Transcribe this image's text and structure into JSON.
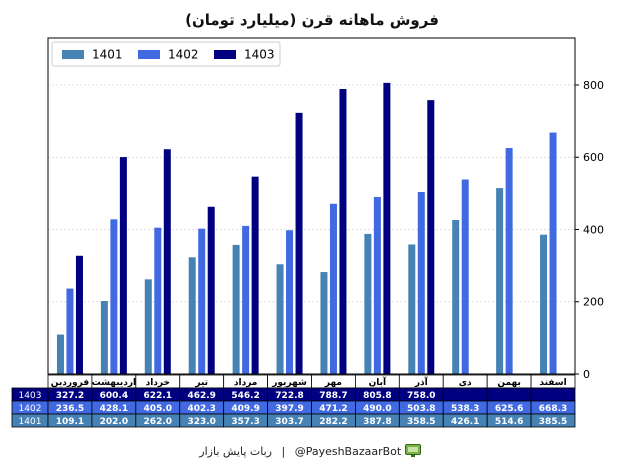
{
  "chart_data": {
    "type": "bar",
    "title": "فروش ماهانه قرن (میلیارد تومان)",
    "categories": [
      "فروردین",
      "اردیبهشت",
      "خرداد",
      "تیر",
      "مرداد",
      "شهریور",
      "مهر",
      "آبان",
      "آذر",
      "دی",
      "بهمن",
      "اسفند"
    ],
    "series": [
      {
        "name": "1401",
        "color": "#4682b4",
        "values": [
          109.1,
          202.0,
          262.0,
          323.0,
          357.3,
          303.7,
          282.2,
          387.8,
          358.5,
          426.1,
          514.6,
          385.5
        ]
      },
      {
        "name": "1402",
        "color": "#4169e1",
        "values": [
          236.5,
          428.1,
          405.0,
          402.3,
          409.9,
          397.9,
          471.2,
          490.0,
          503.8,
          538.3,
          625.6,
          668.3
        ]
      },
      {
        "name": "1403",
        "color": "#000080",
        "values": [
          327.2,
          600.4,
          622.1,
          462.9,
          546.2,
          722.8,
          788.7,
          805.8,
          758.0,
          null,
          null,
          null
        ]
      }
    ],
    "table_rows": [
      {
        "label": "1403",
        "cells": [
          "327.2",
          "600.4",
          "622.1",
          "462.9",
          "546.2",
          "722.8",
          "788.7",
          "805.8",
          "758.0",
          "",
          "",
          ""
        ]
      },
      {
        "label": "1402",
        "cells": [
          "236.5",
          "428.1",
          "405.0",
          "402.3",
          "409.9",
          "397.9",
          "471.2",
          "490.0",
          "503.8",
          "538.3",
          "625.6",
          "668.3"
        ]
      },
      {
        "label": "1401",
        "cells": [
          "109.1",
          "202.0",
          "262.0",
          "323.0",
          "357.3",
          "303.7",
          "282.2",
          "387.8",
          "358.5",
          "426.1",
          "514.6",
          "385.5"
        ]
      }
    ],
    "yticks": [
      0,
      200,
      400,
      600,
      800
    ],
    "ylim": [
      0,
      930
    ],
    "yaxis_side": "right",
    "grid": true,
    "legend_position": "top-left"
  },
  "footer": {
    "bot_handle": "@PayeshBazaarBot",
    "separator": "|",
    "bot_name": "ربات پایش بازار",
    "bot_icon": "monitor-icon"
  }
}
